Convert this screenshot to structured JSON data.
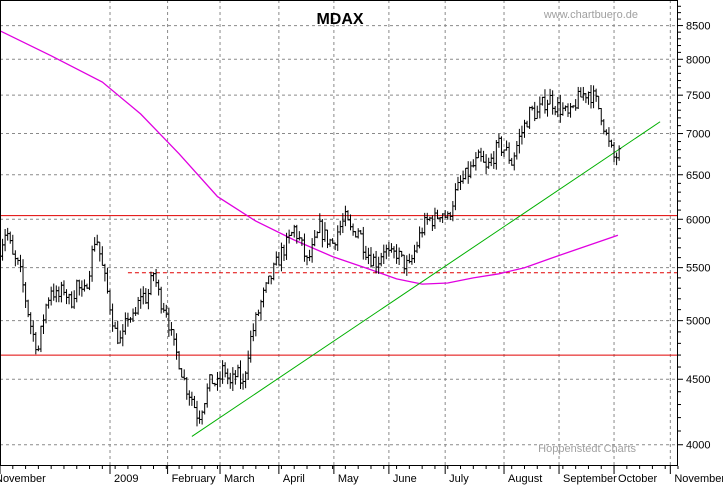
{
  "chart_data": {
    "type": "ohlc",
    "title": "MDAX",
    "watermark": "www.chartbuero.de",
    "source": "Hoppenstedt Charts",
    "y_scale": "log",
    "ylim": [
      3850,
      8900
    ],
    "y_ticks": [
      4000,
      4500,
      5000,
      5500,
      6000,
      6500,
      7000,
      7500,
      8000,
      8500
    ],
    "x_months": [
      "November",
      "2009",
      "February",
      "March",
      "April",
      "May",
      "June",
      "July",
      "August",
      "September",
      "October",
      "November"
    ],
    "x_range_weeks": [
      0,
      53
    ],
    "grid": true,
    "colors": {
      "price": "#000000",
      "moving_average": "#e000e0",
      "horizontal_lines": "#e00000",
      "trendline": "#00b000",
      "grid": "#8a8a8a",
      "title": "#000000",
      "faint_text": "#a0a0a0"
    },
    "moving_average_200": {
      "name": "",
      "points": [
        [
          0,
          8420
        ],
        [
          4,
          8050
        ],
        [
          8,
          7680
        ],
        [
          11,
          7250
        ],
        [
          14,
          6750
        ],
        [
          17,
          6250
        ],
        [
          20,
          5980
        ],
        [
          23,
          5780
        ],
        [
          26,
          5610
        ],
        [
          29,
          5480
        ],
        [
          31,
          5390
        ],
        [
          33,
          5340
        ],
        [
          35,
          5350
        ],
        [
          37,
          5400
        ],
        [
          39,
          5440
        ],
        [
          41,
          5500
        ],
        [
          43,
          5590
        ],
        [
          45,
          5680
        ],
        [
          47,
          5770
        ],
        [
          48.3,
          5830
        ]
      ]
    },
    "horizontal_levels": [
      {
        "value": 6040,
        "style": "solid"
      },
      {
        "value": 4700,
        "style": "solid"
      },
      {
        "value": 5450,
        "style": "dashed",
        "x_from": 10
      }
    ],
    "trendline": {
      "points": [
        [
          15,
          4060
        ],
        [
          51.6,
          7150
        ]
      ]
    },
    "price_path": [
      [
        0,
        5700
      ],
      [
        0.5,
        5900
      ],
      [
        1,
        5600
      ],
      [
        1.5,
        5500
      ],
      [
        2,
        5200
      ],
      [
        2.5,
        4900
      ],
      [
        3,
        4750
      ],
      [
        3.5,
        5100
      ],
      [
        4,
        5300
      ],
      [
        4.5,
        5200
      ],
      [
        5,
        5300
      ],
      [
        5.5,
        5150
      ],
      [
        6,
        5350
      ],
      [
        6.5,
        5200
      ],
      [
        7,
        5500
      ],
      [
        7.5,
        5850
      ],
      [
        8,
        5500
      ],
      [
        8.5,
        5200
      ],
      [
        9,
        4900
      ],
      [
        9.5,
        4800
      ],
      [
        10,
        5050
      ],
      [
        10.5,
        5000
      ],
      [
        11,
        5250
      ],
      [
        11.5,
        5200
      ],
      [
        12,
        5450
      ],
      [
        12.5,
        5200
      ],
      [
        13,
        5100
      ],
      [
        13.5,
        4800
      ],
      [
        14,
        4650
      ],
      [
        14.5,
        4450
      ],
      [
        15,
        4350
      ],
      [
        15.5,
        4200
      ],
      [
        16,
        4350
      ],
      [
        16.5,
        4500
      ],
      [
        17,
        4450
      ],
      [
        17.5,
        4600
      ],
      [
        18,
        4450
      ],
      [
        18.5,
        4550
      ],
      [
        19,
        4450
      ],
      [
        19.5,
        4800
      ],
      [
        20,
        5000
      ],
      [
        20.5,
        5200
      ],
      [
        21,
        5350
      ],
      [
        21.5,
        5500
      ],
      [
        22,
        5650
      ],
      [
        22.5,
        5750
      ],
      [
        23,
        5900
      ],
      [
        23.5,
        5750
      ],
      [
        24,
        5550
      ],
      [
        24.5,
        5700
      ],
      [
        25,
        5900
      ],
      [
        25.5,
        5800
      ],
      [
        26,
        5750
      ],
      [
        26.5,
        5900
      ],
      [
        27,
        6000
      ],
      [
        27.5,
        5850
      ],
      [
        28,
        5900
      ],
      [
        28.5,
        5700
      ],
      [
        29,
        5600
      ],
      [
        29.5,
        5550
      ],
      [
        30,
        5700
      ],
      [
        30.5,
        5600
      ],
      [
        31,
        5650
      ],
      [
        31.5,
        5550
      ],
      [
        32,
        5500
      ],
      [
        32.5,
        5700
      ],
      [
        33,
        5900
      ],
      [
        33.5,
        6000
      ],
      [
        34,
        6000
      ],
      [
        34.5,
        6100
      ],
      [
        35,
        6000
      ],
      [
        35.5,
        6250
      ],
      [
        36,
        6400
      ],
      [
        36.5,
        6500
      ],
      [
        37,
        6600
      ],
      [
        37.5,
        6700
      ],
      [
        38,
        6550
      ],
      [
        38.5,
        6700
      ],
      [
        39,
        6850
      ],
      [
        39.5,
        6800
      ],
      [
        40,
        6650
      ],
      [
        40.5,
        6900
      ],
      [
        41,
        7100
      ],
      [
        41.5,
        7300
      ],
      [
        42,
        7250
      ],
      [
        42.5,
        7400
      ],
      [
        43,
        7450
      ],
      [
        43.5,
        7350
      ],
      [
        44,
        7300
      ],
      [
        44.5,
        7200
      ],
      [
        45,
        7400
      ],
      [
        45.5,
        7500
      ],
      [
        46,
        7550
      ],
      [
        46.5,
        7450
      ],
      [
        47,
        7250
      ],
      [
        47.5,
        6900
      ],
      [
        48,
        6700
      ],
      [
        48.5,
        6750
      ]
    ]
  }
}
